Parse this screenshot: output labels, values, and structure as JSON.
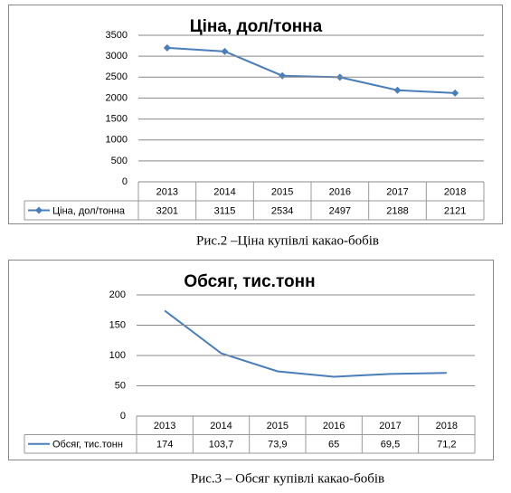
{
  "chart_data": [
    {
      "type": "line",
      "title": "Ціна, дол/тонна",
      "caption": "Рис.2 –Ціна купівлі какао-бобів",
      "categories": [
        "2013",
        "2014",
        "2015",
        "2016",
        "2017",
        "2018"
      ],
      "series": [
        {
          "name": "Ціна, дол/тонна",
          "color": "#4a7ebb",
          "marker": "diamond",
          "values": [
            3201,
            3115,
            2534,
            2497,
            2188,
            2121
          ]
        }
      ],
      "ylim": [
        0,
        3500
      ],
      "yticks": [
        0,
        500,
        1000,
        1500,
        2000,
        2500,
        3000,
        3500
      ],
      "grid": true,
      "legend": "table"
    },
    {
      "type": "line",
      "title": "Обсяг, тис.тонн",
      "caption": "Рис.3 – Обсяг купівлі какао-бобів",
      "categories": [
        "2013",
        "2014",
        "2015",
        "2016",
        "2017",
        "2018"
      ],
      "series": [
        {
          "name": "Обсяг, тис.тонн",
          "color": "#4a7ebb",
          "values": [
            174,
            103.7,
            73.9,
            65,
            69.5,
            71.2
          ],
          "value_labels": [
            "174",
            "103,7",
            "73,9",
            "65",
            "69,5",
            "71,2"
          ]
        }
      ],
      "ylim": [
        0,
        200
      ],
      "yticks": [
        0,
        50,
        100,
        150,
        200
      ],
      "grid": true,
      "legend": "table"
    }
  ]
}
